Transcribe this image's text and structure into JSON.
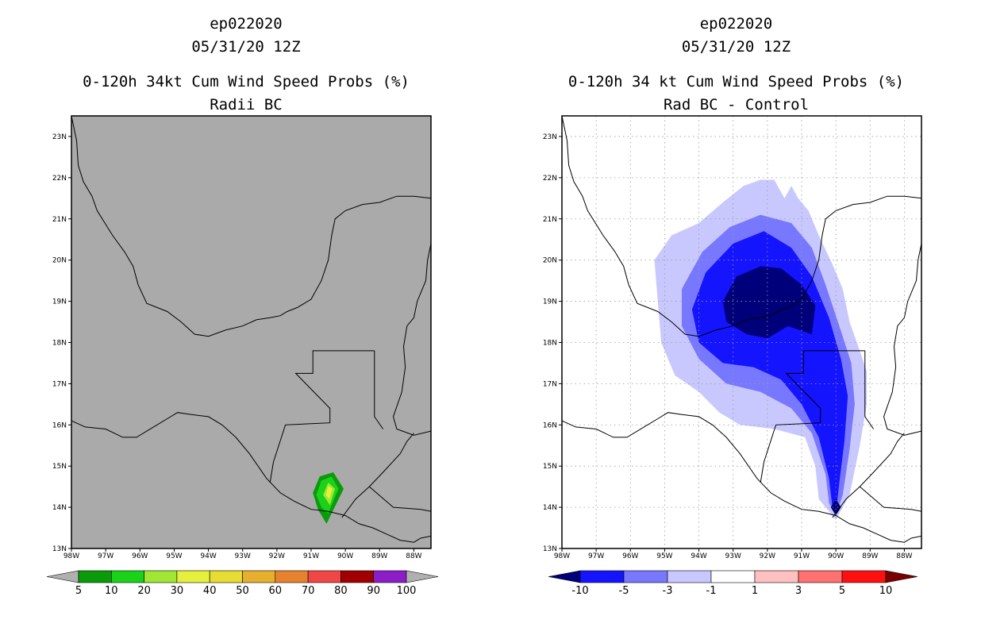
{
  "left_panel": {
    "storm_id": "ep022020",
    "datetime": "05/31/20 12Z",
    "title": "0-120h 34kt Cum Wind Speed Probs (%)",
    "subtitle": "Radii BC",
    "background_color": "#aaaaaa"
  },
  "right_panel": {
    "storm_id": "ep022020",
    "datetime": "05/31/20 12Z",
    "title": "0-120h 34 kt Cum Wind Speed Probs (%)",
    "subtitle": "Rad BC - Control",
    "background_color": "#ffffff"
  },
  "map": {
    "lon_range": [
      -98,
      -87.5
    ],
    "lat_range": [
      13,
      23.5
    ],
    "lon_ticks": [
      "98W",
      "97W",
      "96W",
      "95W",
      "94W",
      "93W",
      "92W",
      "91W",
      "90W",
      "89W",
      "88W"
    ],
    "lat_ticks": [
      "13N",
      "14N",
      "15N",
      "16N",
      "17N",
      "18N",
      "19N",
      "20N",
      "21N",
      "22N",
      "23N"
    ]
  },
  "left_colorbar": {
    "labels": [
      "5",
      "10",
      "20",
      "30",
      "40",
      "50",
      "60",
      "70",
      "80",
      "90",
      "100"
    ],
    "colors": [
      "#0a9a0a",
      "#19d219",
      "#a0e632",
      "#e6f03c",
      "#e6dc32",
      "#e6af2d",
      "#e6822d",
      "#f04646",
      "#a00000",
      "#8c1ec8"
    ],
    "end_color": "#b0b0b0"
  },
  "right_colorbar": {
    "labels": [
      "-10",
      "-5",
      "-3",
      "-1",
      "1",
      "3",
      "5",
      "10"
    ],
    "colors": [
      "#1414ff",
      "#7878ff",
      "#c8c8ff",
      "#ffffff",
      "#ffc0c0",
      "#ff7070",
      "#ff1010"
    ],
    "low_end_color": "#00007a",
    "high_end_color": "#7a0000"
  },
  "left_probability_contours": [
    {
      "level": "5-10",
      "color": "#0a9a0a",
      "points": [
        [
          -90.55,
          13.6
        ],
        [
          -90.05,
          14.45
        ],
        [
          -90.35,
          14.85
        ],
        [
          -90.75,
          14.75
        ],
        [
          -90.95,
          14.35
        ],
        [
          -90.8,
          13.95
        ]
      ]
    },
    {
      "level": "10-20",
      "color": "#19d219",
      "points": [
        [
          -90.5,
          13.85
        ],
        [
          -90.2,
          14.45
        ],
        [
          -90.4,
          14.75
        ],
        [
          -90.7,
          14.65
        ],
        [
          -90.85,
          14.3
        ],
        [
          -90.7,
          14.0
        ]
      ]
    },
    {
      "level": "20-30",
      "color": "#a0e632",
      "points": [
        [
          -90.45,
          14.05
        ],
        [
          -90.3,
          14.45
        ],
        [
          -90.5,
          14.6
        ],
        [
          -90.65,
          14.3
        ]
      ]
    },
    {
      "level": "30-40",
      "color": "#e6f03c",
      "points": [
        [
          -90.47,
          14.2
        ],
        [
          -90.38,
          14.45
        ],
        [
          -90.5,
          14.52
        ],
        [
          -90.57,
          14.3
        ]
      ]
    }
  ],
  "right_difference_contours": [
    {
      "level": "-3 to -1",
      "color": "#c8c8ff",
      "points": [
        [
          -90.0,
          13.7
        ],
        [
          -89.6,
          14.3
        ],
        [
          -89.3,
          15.5
        ],
        [
          -89.1,
          16.5
        ],
        [
          -89.1,
          17.3
        ],
        [
          -89.3,
          17.8
        ],
        [
          -89.6,
          18.5
        ],
        [
          -89.8,
          19.3
        ],
        [
          -90.1,
          19.9
        ],
        [
          -90.5,
          20.6
        ],
        [
          -90.8,
          21.2
        ],
        [
          -91.1,
          21.5
        ],
        [
          -91.3,
          21.8
        ],
        [
          -91.5,
          21.5
        ],
        [
          -91.8,
          21.95
        ],
        [
          -92.2,
          21.95
        ],
        [
          -92.7,
          21.8
        ],
        [
          -93.3,
          21.4
        ],
        [
          -94.0,
          20.9
        ],
        [
          -94.8,
          20.6
        ],
        [
          -95.3,
          20.0
        ],
        [
          -95.2,
          19.0
        ],
        [
          -95.1,
          18.0
        ],
        [
          -94.7,
          17.2
        ],
        [
          -94.0,
          16.8
        ],
        [
          -93.4,
          16.3
        ],
        [
          -92.8,
          16.0
        ],
        [
          -91.8,
          15.9
        ],
        [
          -90.9,
          15.7
        ],
        [
          -90.6,
          15.0
        ],
        [
          -90.5,
          14.2
        ]
      ]
    },
    {
      "level": "-5 to -3",
      "color": "#7878ff",
      "points": [
        [
          -90.0,
          13.8
        ],
        [
          -89.8,
          14.3
        ],
        [
          -89.6,
          15.4
        ],
        [
          -89.45,
          16.5
        ],
        [
          -89.55,
          17.5
        ],
        [
          -89.9,
          18.4
        ],
        [
          -90.3,
          19.4
        ],
        [
          -90.7,
          20.3
        ],
        [
          -91.3,
          20.9
        ],
        [
          -92.2,
          21.1
        ],
        [
          -93.1,
          20.8
        ],
        [
          -93.9,
          20.2
        ],
        [
          -94.5,
          19.3
        ],
        [
          -94.5,
          18.4
        ],
        [
          -94.0,
          17.6
        ],
        [
          -93.2,
          17.0
        ],
        [
          -92.2,
          16.8
        ],
        [
          -91.3,
          16.4
        ],
        [
          -90.7,
          15.8
        ],
        [
          -90.3,
          14.8
        ],
        [
          -90.2,
          14.1
        ]
      ]
    },
    {
      "level": "-10 to -5",
      "color": "#1414ff",
      "points": [
        [
          -90.0,
          13.85
        ],
        [
          -89.9,
          14.6
        ],
        [
          -89.75,
          15.6
        ],
        [
          -89.65,
          16.7
        ],
        [
          -89.85,
          17.6
        ],
        [
          -90.2,
          18.6
        ],
        [
          -90.7,
          19.6
        ],
        [
          -91.3,
          20.3
        ],
        [
          -92.1,
          20.7
        ],
        [
          -93.0,
          20.4
        ],
        [
          -93.8,
          19.7
        ],
        [
          -94.2,
          18.8
        ],
        [
          -94.0,
          18.0
        ],
        [
          -93.3,
          17.5
        ],
        [
          -92.4,
          17.4
        ],
        [
          -91.6,
          17.1
        ],
        [
          -91.0,
          16.5
        ],
        [
          -90.5,
          15.7
        ],
        [
          -90.2,
          14.7
        ],
        [
          -90.1,
          14.0
        ]
      ]
    },
    {
      "level": "< -10 (north)",
      "color": "#00007a",
      "points": [
        [
          -91.4,
          18.4
        ],
        [
          -90.7,
          18.2
        ],
        [
          -90.6,
          18.9
        ],
        [
          -91.0,
          19.4
        ],
        [
          -91.6,
          19.8
        ],
        [
          -92.2,
          19.85
        ],
        [
          -92.9,
          19.6
        ],
        [
          -93.3,
          19.0
        ],
        [
          -93.2,
          18.5
        ],
        [
          -92.6,
          18.2
        ],
        [
          -92.0,
          18.1
        ]
      ]
    },
    {
      "level": "< -10 (south)",
      "color": "#00007a",
      "points": [
        [
          -90.0,
          13.8
        ],
        [
          -89.85,
          14.0
        ],
        [
          -90.0,
          14.2
        ],
        [
          -90.15,
          14.0
        ]
      ]
    }
  ],
  "coastlines": [
    {
      "kind": "gulf-coast",
      "points": [
        [
          -98.0,
          23.5
        ],
        [
          -97.85,
          22.9
        ],
        [
          -97.8,
          22.3
        ],
        [
          -97.65,
          21.9
        ],
        [
          -97.4,
          21.55
        ],
        [
          -97.25,
          21.2
        ],
        [
          -96.8,
          20.6
        ],
        [
          -96.45,
          20.2
        ],
        [
          -96.2,
          19.85
        ],
        [
          -96.05,
          19.4
        ],
        [
          -95.8,
          18.95
        ],
        [
          -95.2,
          18.75
        ],
        [
          -94.8,
          18.5
        ],
        [
          -94.4,
          18.2
        ],
        [
          -94.0,
          18.15
        ],
        [
          -93.5,
          18.3
        ],
        [
          -93.0,
          18.4
        ],
        [
          -92.6,
          18.55
        ],
        [
          -92.2,
          18.6
        ],
        [
          -91.9,
          18.65
        ],
        [
          -91.7,
          18.75
        ],
        [
          -91.4,
          18.85
        ],
        [
          -91.0,
          19.05
        ],
        [
          -90.7,
          19.5
        ],
        [
          -90.5,
          20.0
        ],
        [
          -90.4,
          20.6
        ],
        [
          -90.3,
          21.0
        ],
        [
          -90.0,
          21.2
        ],
        [
          -89.5,
          21.35
        ],
        [
          -89.0,
          21.4
        ],
        [
          -88.5,
          21.55
        ],
        [
          -88.0,
          21.55
        ],
        [
          -87.5,
          21.5
        ]
      ]
    },
    {
      "kind": "caribbean-coast",
      "points": [
        [
          -87.5,
          20.4
        ],
        [
          -87.6,
          20.0
        ],
        [
          -87.65,
          19.5
        ],
        [
          -87.9,
          19.0
        ],
        [
          -88.0,
          18.6
        ],
        [
          -88.2,
          18.4
        ],
        [
          -88.3,
          17.9
        ],
        [
          -88.25,
          17.4
        ],
        [
          -88.35,
          16.8
        ],
        [
          -88.6,
          16.2
        ],
        [
          -88.5,
          15.9
        ],
        [
          -88.0,
          15.75
        ],
        [
          -87.5,
          15.85
        ]
      ]
    },
    {
      "kind": "pacific-coast",
      "points": [
        [
          -98.0,
          16.1
        ],
        [
          -97.6,
          15.95
        ],
        [
          -97.0,
          15.9
        ],
        [
          -96.5,
          15.7
        ],
        [
          -96.1,
          15.7
        ],
        [
          -95.6,
          15.95
        ],
        [
          -95.2,
          16.15
        ],
        [
          -94.9,
          16.3
        ],
        [
          -94.5,
          16.25
        ],
        [
          -94.0,
          16.2
        ],
        [
          -93.6,
          16.0
        ],
        [
          -93.2,
          15.7
        ],
        [
          -92.8,
          15.3
        ],
        [
          -92.3,
          14.7
        ],
        [
          -91.9,
          14.35
        ],
        [
          -91.5,
          14.15
        ],
        [
          -91.0,
          13.95
        ],
        [
          -90.5,
          13.9
        ],
        [
          -90.0,
          13.8
        ],
        [
          -89.6,
          13.6
        ],
        [
          -89.2,
          13.5
        ],
        [
          -88.8,
          13.35
        ],
        [
          -88.4,
          13.2
        ],
        [
          -88.0,
          13.15
        ],
        [
          -87.8,
          13.25
        ],
        [
          -87.5,
          13.3
        ]
      ]
    }
  ],
  "borders": [
    {
      "kind": "mexico-guatemala",
      "points": [
        [
          -92.2,
          14.6
        ],
        [
          -92.1,
          15.1
        ],
        [
          -91.75,
          16.0
        ],
        [
          -90.45,
          16.05
        ],
        [
          -90.45,
          16.4
        ],
        [
          -91.45,
          17.25
        ],
        [
          -90.95,
          17.25
        ],
        [
          -90.95,
          17.8
        ],
        [
          -89.15,
          17.8
        ]
      ]
    },
    {
      "kind": "belize-guatemala",
      "points": [
        [
          -89.15,
          17.8
        ],
        [
          -89.15,
          16.2
        ],
        [
          -88.9,
          15.9
        ]
      ]
    },
    {
      "kind": "central-america",
      "points": [
        [
          -90.1,
          13.75
        ],
        [
          -89.7,
          14.2
        ],
        [
          -89.3,
          14.5
        ],
        [
          -88.9,
          14.85
        ],
        [
          -88.4,
          15.3
        ],
        [
          -88.2,
          15.6
        ],
        [
          -88.0,
          15.8
        ]
      ]
    },
    {
      "kind": "honduras-elsalvador",
      "points": [
        [
          -89.3,
          14.5
        ],
        [
          -88.6,
          14.0
        ],
        [
          -87.8,
          13.95
        ],
        [
          -87.5,
          13.9
        ]
      ]
    }
  ]
}
